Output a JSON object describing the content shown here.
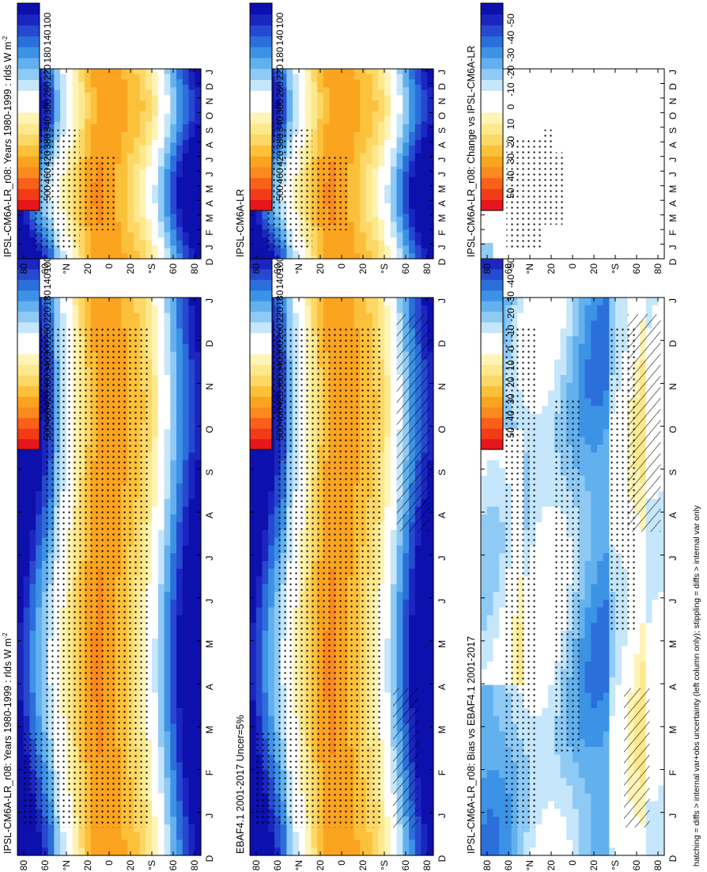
{
  "figure": {
    "footnote": "hatching = diffs > internal var+obs uncertainty (left column only); stippling = diffs > internal var only"
  },
  "chart_data": [
    {
      "id": "model-left",
      "type": "heatmap",
      "title": "IPSL-CM6A-LR_r08: Years 1980-1999 : rlds W m",
      "title_sup": "-2",
      "x_categories": [
        "D",
        "J",
        "F",
        "M",
        "A",
        "M",
        "J",
        "J",
        "A",
        "S",
        "O",
        "N",
        "D",
        "J"
      ],
      "y_ticks": [
        "80",
        "60",
        "°N",
        "20",
        "0",
        "20",
        "°S",
        "60",
        "80"
      ],
      "colorbar": {
        "labels": [
          "500",
          "460",
          "420",
          "380",
          "340",
          "300",
          "260",
          "220",
          "180",
          "140",
          "100"
        ],
        "colors": [
          "#e8151b",
          "#f23c18",
          "#f9601a",
          "#fb8a1e",
          "#fba420",
          "#fcc13a",
          "#fdd867",
          "#fde98d",
          "#fff4b6",
          "#ffffff",
          "#ffffff",
          "#c5e6fb",
          "#8fcaf5",
          "#62b1ee",
          "#3c93e6",
          "#2b6fdb",
          "#2649cf",
          "#1b26c1",
          "#0d10ad"
        ]
      },
      "field": "abs",
      "stipple": "model",
      "hatch": false
    },
    {
      "id": "obs-left",
      "type": "heatmap",
      "title": "EBAF4.1 2001-2017 Uncer=5%",
      "title_sup": "",
      "x_categories": [
        "D",
        "J",
        "F",
        "M",
        "A",
        "M",
        "J",
        "J",
        "A",
        "S",
        "O",
        "N",
        "D",
        "J"
      ],
      "y_ticks": [
        "80",
        "60",
        "°N",
        "20",
        "0",
        "20",
        "°S",
        "60",
        "80"
      ],
      "colorbar": {
        "labels": [
          "500",
          "460",
          "420",
          "380",
          "340",
          "300",
          "260",
          "220",
          "180",
          "140",
          "100"
        ],
        "colors": [
          "#e8151b",
          "#f23c18",
          "#f9601a",
          "#fb8a1e",
          "#fba420",
          "#fcc13a",
          "#fdd867",
          "#fde98d",
          "#fff4b6",
          "#ffffff",
          "#ffffff",
          "#c5e6fb",
          "#8fcaf5",
          "#62b1ee",
          "#3c93e6",
          "#2b6fdb",
          "#2649cf",
          "#1b26c1",
          "#0d10ad"
        ]
      },
      "field": "abs",
      "stipple": "model",
      "hatch": true
    },
    {
      "id": "bias-left",
      "type": "heatmap",
      "title": "IPSL-CM6A-LR_r08: Bias vs EBAF4.1 2001-2017",
      "title_sup": "",
      "x_categories": [
        "D",
        "J",
        "F",
        "M",
        "A",
        "M",
        "J",
        "J",
        "A",
        "S",
        "O",
        "N",
        "D",
        "J"
      ],
      "y_ticks": [
        "80",
        "60",
        "°N",
        "20",
        "0",
        "20",
        "°S",
        "60",
        "80"
      ],
      "colorbar": {
        "labels": [
          "50",
          "40",
          "30",
          "20",
          "10",
          "0",
          "-10",
          "-20",
          "-30",
          "-40",
          "-50"
        ],
        "colors": [
          "#e8151b",
          "#f23c18",
          "#f9601a",
          "#fb8a1e",
          "#fba420",
          "#fcc13a",
          "#fdd867",
          "#fde98d",
          "#fff4b6",
          "#ffffff",
          "#ffffff",
          "#c5e6fb",
          "#8fcaf5",
          "#62b1ee",
          "#3c93e6",
          "#2b6fdb",
          "#2649cf",
          "#1b26c1",
          "#0d10ad"
        ]
      },
      "field": "bias",
      "stipple": "bias",
      "hatch": true
    },
    {
      "id": "model-right",
      "type": "heatmap",
      "title": "IPSL-CM6A-LR_r08: Years 1980-1999 : rlds W m",
      "title_sup": "-2",
      "x_categories": [
        "D",
        "J",
        "F",
        "M",
        "A",
        "M",
        "J",
        "J",
        "A",
        "S",
        "O",
        "N",
        "D",
        "J"
      ],
      "y_ticks": [
        "80",
        "60",
        "°N",
        "20",
        "0",
        "20",
        "°S",
        "60",
        "80"
      ],
      "colorbar": {
        "labels": [
          "500",
          "460",
          "420",
          "380",
          "340",
          "300",
          "260",
          "220",
          "180",
          "140",
          "100"
        ],
        "colors": [
          "#e8151b",
          "#f23c18",
          "#f9601a",
          "#fb8a1e",
          "#fba420",
          "#fcc13a",
          "#fdd867",
          "#fde98d",
          "#fff4b6",
          "#ffffff",
          "#ffffff",
          "#c5e6fb",
          "#8fcaf5",
          "#62b1ee",
          "#3c93e6",
          "#2b6fdb",
          "#2649cf",
          "#1b26c1",
          "#0d10ad"
        ]
      },
      "field": "abs",
      "stipple": "modelsparse",
      "hatch": false
    },
    {
      "id": "ref-right",
      "type": "heatmap",
      "title": "IPSL-CM6A-LR",
      "title_sup": "",
      "x_categories": [
        "D",
        "J",
        "F",
        "M",
        "A",
        "M",
        "J",
        "J",
        "A",
        "S",
        "O",
        "N",
        "D",
        "J"
      ],
      "y_ticks": [
        "80",
        "60",
        "°N",
        "20",
        "0",
        "20",
        "°S",
        "60",
        "80"
      ],
      "colorbar": {
        "labels": [
          "500",
          "460",
          "420",
          "380",
          "340",
          "300",
          "260",
          "220",
          "180",
          "140",
          "100"
        ],
        "colors": [
          "#e8151b",
          "#f23c18",
          "#f9601a",
          "#fb8a1e",
          "#fba420",
          "#fcc13a",
          "#fdd867",
          "#fde98d",
          "#fff4b6",
          "#ffffff",
          "#ffffff",
          "#c5e6fb",
          "#8fcaf5",
          "#62b1ee",
          "#3c93e6",
          "#2b6fdb",
          "#2649cf",
          "#1b26c1",
          "#0d10ad"
        ]
      },
      "field": "abs",
      "stipple": "modelsparse",
      "hatch": false
    },
    {
      "id": "change-right",
      "type": "heatmap",
      "title": "IPSL-CM6A-LR_r08: Change vs IPSL-CM6A-LR",
      "title_sup": "",
      "x_categories": [
        "D",
        "J",
        "F",
        "M",
        "A",
        "M",
        "J",
        "J",
        "A",
        "S",
        "O",
        "N",
        "D",
        "J"
      ],
      "y_ticks": [
        "80",
        "60",
        "°N",
        "20",
        "0",
        "20",
        "°S",
        "60",
        "80"
      ],
      "colorbar": {
        "labels": [
          "50",
          "40",
          "30",
          "20",
          "10",
          "0",
          "-10",
          "-20",
          "-30",
          "-40",
          "-50"
        ],
        "colors": [
          "#e8151b",
          "#f23c18",
          "#f9601a",
          "#fb8a1e",
          "#fba420",
          "#fcc13a",
          "#fdd867",
          "#fde98d",
          "#fff4b6",
          "#ffffff",
          "#ffffff",
          "#c5e6fb",
          "#8fcaf5",
          "#62b1ee",
          "#3c93e6",
          "#2b6fdb",
          "#2649cf",
          "#1b26c1",
          "#0d10ad"
        ]
      },
      "field": "change",
      "stipple": "change",
      "hatch": false
    }
  ]
}
